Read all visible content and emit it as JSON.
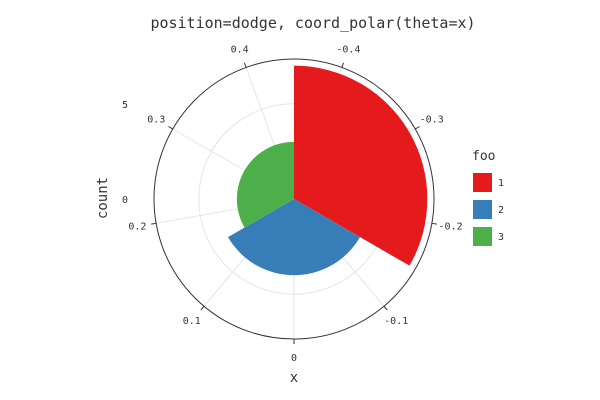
{
  "chart_data": {
    "type": "polar-bar",
    "title": "position=dodge, coord_polar(theta=x)",
    "xlabel": "x",
    "ylabel": "count",
    "theta_ticks": [
      "-0.4",
      "-0.3",
      "-0.2",
      "-0.1",
      "0",
      "0.1",
      "0.2",
      "0.3",
      "0.4"
    ],
    "theta_tick_values": [
      -0.4,
      -0.3,
      -0.2,
      -0.1,
      0,
      0.1,
      0.2,
      0.3,
      0.4
    ],
    "theta_range": [
      -0.45,
      0.45
    ],
    "r_ticks": [
      "0",
      "5"
    ],
    "r_tick_values": [
      0,
      5
    ],
    "r_range": [
      0,
      7.35
    ],
    "grid": true,
    "legend": {
      "title": "foo",
      "placement": "right",
      "items": [
        {
          "label": "1",
          "color": "#E41A1C"
        },
        {
          "label": "2",
          "color": "#377EB8"
        },
        {
          "label": "3",
          "color": "#4DAF4A"
        }
      ]
    },
    "series": [
      {
        "name": "1",
        "color": "#E41A1C",
        "x_min": -0.45,
        "x_max": -0.15,
        "count": 7
      },
      {
        "name": "2",
        "color": "#377EB8",
        "x_min": -0.15,
        "x_max": 0.15,
        "count": 4
      },
      {
        "name": "3",
        "color": "#4DAF4A",
        "x_min": 0.15,
        "x_max": 0.45,
        "count": 3
      }
    ]
  }
}
